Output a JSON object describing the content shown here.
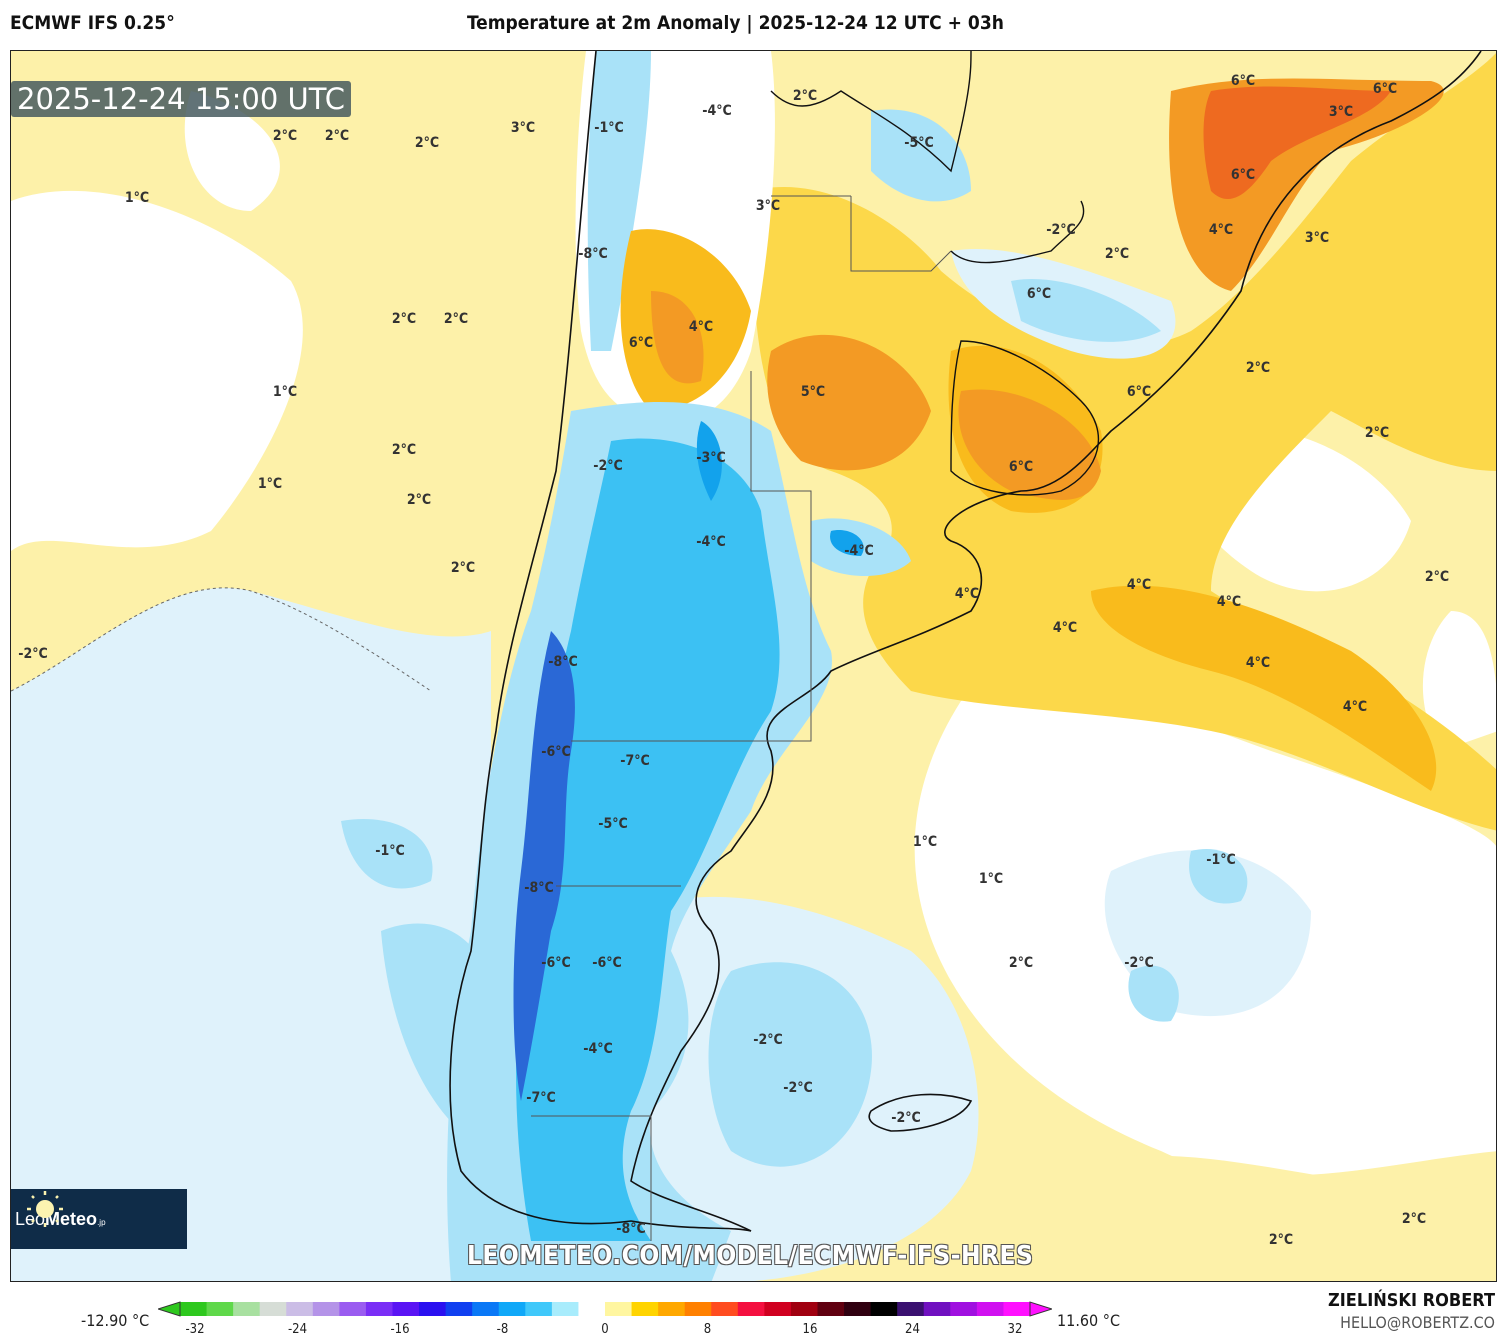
{
  "header": {
    "model": "ECMWF IFS 0.25°",
    "title": "Temperature at 2m Anomaly | 2025-12-24 12 UTC + 03h"
  },
  "map": {
    "valid_time": "2025-12-24 15:00 UTC",
    "watermark_url": "LEOMETEO.COM/MODEL/ECMWF-IFS-HRES",
    "logo_text": "LeoMeteo.jp",
    "contour_labels": [
      "2°C",
      "2°C",
      "2°C",
      "3°C",
      "1°C",
      "-1°C",
      "-4°C",
      "2°C",
      "-5°C",
      "6°C",
      "6°C",
      "3°C",
      "6°C",
      "3°C",
      "-8°C",
      "-2°C",
      "2°C",
      "4°C",
      "3°C",
      "6°C",
      "2°C",
      "2°C",
      "4°C",
      "6°C",
      "2°C",
      "1°C",
      "5°C",
      "6°C",
      "2°C",
      "2°C",
      "-3°C",
      "-2°C",
      "6°C",
      "1°C",
      "2°C",
      "-4°C",
      "-4°C",
      "2°C",
      "4°C",
      "2°C",
      "4°C",
      "4°C",
      "4°C",
      "-2°C",
      "-8°C",
      "4°C",
      "4°C",
      "-6°C",
      "-7°C",
      "-5°C",
      "1°C",
      "-1°C",
      "-1°C",
      "1°C",
      "-8°C",
      "-6°C",
      "-6°C",
      "2°C",
      "-2°C",
      "-2°C",
      "-4°C",
      "-2°C",
      "-7°C",
      "-2°C",
      "-8°C",
      "2°C",
      "2°C"
    ],
    "colors": {
      "warm_light": "#fdf1a9",
      "warm": "#fcd84a",
      "warm_mid": "#f9bb1c",
      "warm_strong": "#f39a24",
      "hot": "#ee6a20",
      "cold_light": "#dff2fb",
      "cold": "#a9e2f8",
      "cold_mid": "#3cc1f3",
      "cold_strong": "#12a2ec",
      "cold_deep": "#2a68d6"
    }
  },
  "colorbar": {
    "min_label": "-12.90 °C",
    "max_label": "11.60 °C",
    "ticks": [
      "-32",
      "-24",
      "-16",
      "-8",
      "0",
      "8",
      "16",
      "24",
      "32"
    ],
    "colors": [
      "#2ec81e",
      "#5fd84a",
      "#a8e0a0",
      "#d6ddd6",
      "#cbbde6",
      "#b493e8",
      "#9a5cf0",
      "#7a2ef6",
      "#5a14f4",
      "#2a10f0",
      "#1040f0",
      "#0a78f6",
      "#10a8f8",
      "#40c8fa",
      "#a8ecfc",
      "#ffffff",
      "#fff6a0",
      "#ffd400",
      "#ffa800",
      "#ff8000",
      "#ff4c20",
      "#f41040",
      "#d00020",
      "#a00010",
      "#600010",
      "#300010",
      "#000000",
      "#3a1070",
      "#7010c0",
      "#a010e0",
      "#d010f0",
      "#ff10ff"
    ]
  },
  "footer": {
    "author": "ZIELIŃSKI ROBERT",
    "email": "HELLO@ROBERTZ.CO"
  }
}
